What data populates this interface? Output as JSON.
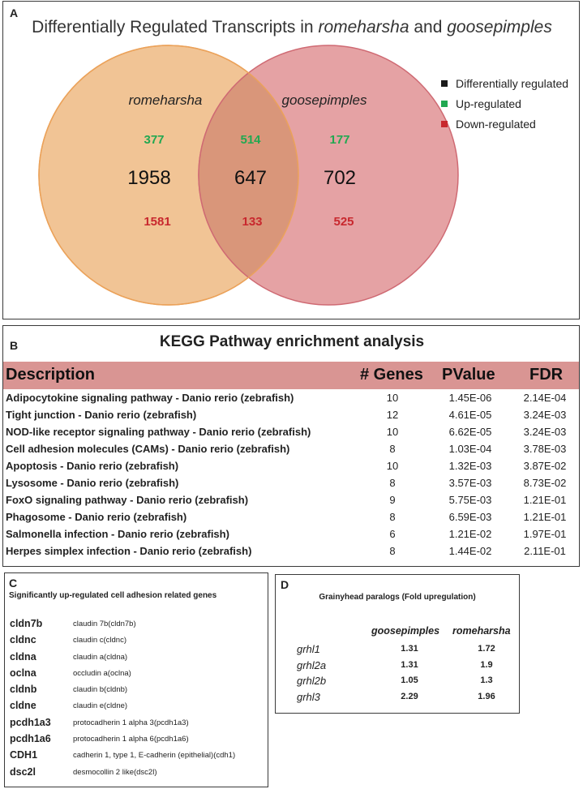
{
  "panel_a": {
    "label": "A",
    "title_prefix": "Differentially Regulated Transcripts in ",
    "title_a": "romeharsha",
    "title_mid": " and ",
    "title_b": "goosepimples",
    "set_left_name": "romeharsha",
    "set_right_name": "goosepimples",
    "left_only": {
      "total": "1958",
      "up": "377",
      "down": "1581"
    },
    "overlap": {
      "total": "647",
      "up": "514",
      "down": "133"
    },
    "right_only": {
      "total": "702",
      "up": "177",
      "down": "525"
    },
    "legend": [
      {
        "label": "Differentially regulated",
        "color": "#1a1a1a"
      },
      {
        "label": "Up-regulated",
        "color": "#22a851"
      },
      {
        "label": "Down-regulated",
        "color": "#c8282e"
      }
    ],
    "colors": {
      "left_fill": "#f1c495",
      "left_stroke": "#eba25a",
      "right_fill": "#e5a2a4",
      "right_stroke": "#cf6a73",
      "overlap_fill": "#d9967a",
      "up": "#22a851",
      "down": "#c8282e"
    }
  },
  "panel_b": {
    "label": "B",
    "title": "KEGG Pathway enrichment analysis",
    "headers": {
      "description": "Description",
      "genes": "# Genes",
      "pvalue": "PValue",
      "fdr": "FDR"
    },
    "header_color": "#d99593",
    "rows": [
      {
        "description": "Adipocytokine signaling pathway - Danio rerio (zebrafish)",
        "genes": "10",
        "pvalue": "1.45E-06",
        "fdr": "2.14E-04"
      },
      {
        "description": "Tight junction - Danio rerio (zebrafish)",
        "genes": "12",
        "pvalue": "4.61E-05",
        "fdr": "3.24E-03"
      },
      {
        "description": "NOD-like receptor signaling pathway - Danio rerio (zebrafish)",
        "genes": "10",
        "pvalue": "6.62E-05",
        "fdr": "3.24E-03"
      },
      {
        "description": "Cell adhesion molecules (CAMs) - Danio rerio (zebrafish)",
        "genes": "8",
        "pvalue": "1.03E-04",
        "fdr": "3.78E-03"
      },
      {
        "description": "Apoptosis - Danio rerio (zebrafish)",
        "genes": "10",
        "pvalue": "1.32E-03",
        "fdr": "3.87E-02"
      },
      {
        "description": "Lysosome - Danio rerio (zebrafish)",
        "genes": "8",
        "pvalue": "3.57E-03",
        "fdr": "8.73E-02"
      },
      {
        "description": "FoxO signaling pathway - Danio rerio (zebrafish)",
        "genes": "9",
        "pvalue": "5.75E-03",
        "fdr": "1.21E-01"
      },
      {
        "description": "Phagosome - Danio rerio (zebrafish)",
        "genes": "8",
        "pvalue": "6.59E-03",
        "fdr": "1.21E-01"
      },
      {
        "description": "Salmonella infection - Danio rerio (zebrafish)",
        "genes": "6",
        "pvalue": "1.21E-02",
        "fdr": "1.97E-01"
      },
      {
        "description": "Herpes simplex infection - Danio rerio (zebrafish)",
        "genes": "8",
        "pvalue": "1.44E-02",
        "fdr": "2.11E-01"
      }
    ]
  },
  "panel_c": {
    "label": "C",
    "title": "Significantly up-regulated cell adhesion related genes",
    "genes": [
      {
        "symbol": "cldn7b",
        "name": "claudin 7b(cldn7b)"
      },
      {
        "symbol": "cldnc",
        "name": "claudin c(cldnc)"
      },
      {
        "symbol": "cldna",
        "name": "claudin a(cldna)"
      },
      {
        "symbol": "oclna",
        "name": "occludin a(oclna)"
      },
      {
        "symbol": "cldnb",
        "name": "claudin b(cldnb)"
      },
      {
        "symbol": "cldne",
        "name": "claudin e(cldne)"
      },
      {
        "symbol": "pcdh1a3",
        "name": "protocadherin 1 alpha 3(pcdh1a3)"
      },
      {
        "symbol": "pcdh1a6",
        "name": "protocadherin 1 alpha 6(pcdh1a6)"
      },
      {
        "symbol": "CDH1",
        "name": "cadherin 1, type 1, E-cadherin (epithelial)(cdh1)"
      },
      {
        "symbol": "dsc2l",
        "name": "desmocollin 2 like(dsc2l)"
      }
    ]
  },
  "panel_d": {
    "label": "D",
    "title": "Grainyhead paralogs (Fold upregulation)",
    "col1": "goosepimples",
    "col2": "romeharsha",
    "rows": [
      {
        "gene": "grhl1",
        "v1": "1.31",
        "v2": "1.72"
      },
      {
        "gene": "grhl2a",
        "v1": "1.31",
        "v2": "1.9"
      },
      {
        "gene": "grhl2b",
        "v1": "1.05",
        "v2": "1.3"
      },
      {
        "gene": "grhl3",
        "v1": "2.29",
        "v2": "1.96"
      }
    ]
  }
}
